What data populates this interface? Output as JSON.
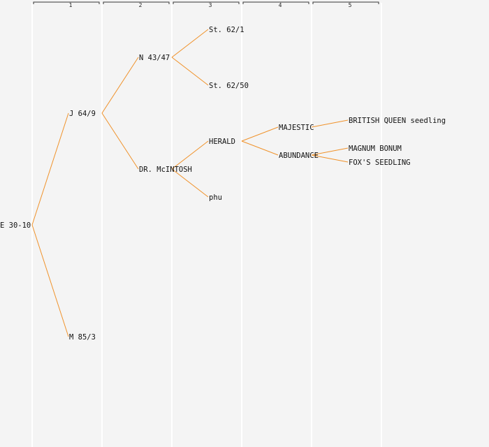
{
  "generations": [
    "1",
    "2",
    "3",
    "4",
    "5"
  ],
  "colors": {
    "edge": "#f0922a",
    "background": "#f4f4f4",
    "column_line": "#ffffff"
  },
  "nodes": [
    {
      "id": "root",
      "label": "E 30-10",
      "gen": 0,
      "row": 8
    },
    {
      "id": "j",
      "label": "J 64/9",
      "gen": 1,
      "row": 4,
      "parent": "root"
    },
    {
      "id": "m",
      "label": "M 85/3",
      "gen": 1,
      "row": 12,
      "parent": "root"
    },
    {
      "id": "n",
      "label": "N 43/47",
      "gen": 2,
      "row": 2,
      "parent": "j"
    },
    {
      "id": "mcintosh",
      "label": "DR. McINTOSH",
      "gen": 2,
      "row": 6,
      "parent": "j"
    },
    {
      "id": "st1",
      "label": "St. 62/1",
      "gen": 3,
      "row": 1,
      "parent": "n"
    },
    {
      "id": "st50",
      "label": "St. 62/50",
      "gen": 3,
      "row": 3,
      "parent": "n"
    },
    {
      "id": "herald",
      "label": "HERALD",
      "gen": 3,
      "row": 5,
      "parent": "mcintosh"
    },
    {
      "id": "phu",
      "label": "phu",
      "gen": 3,
      "row": 7,
      "parent": "mcintosh"
    },
    {
      "id": "majestic",
      "label": "MAJESTIC",
      "gen": 4,
      "row": 4.5,
      "parent": "herald"
    },
    {
      "id": "abundance",
      "label": "ABUNDANCE",
      "gen": 4,
      "row": 5.5,
      "parent": "herald"
    },
    {
      "id": "bq",
      "label": "BRITISH QUEEN seedling",
      "gen": 5,
      "row": 4.25,
      "parent": "majestic"
    },
    {
      "id": "mb",
      "label": "MAGNUM BONUM",
      "gen": 5,
      "row": 5.25,
      "parent": "abundance"
    },
    {
      "id": "fox",
      "label": "FOX'S SEEDLING",
      "gen": 5,
      "row": 5.75,
      "parent": "abundance"
    }
  ]
}
